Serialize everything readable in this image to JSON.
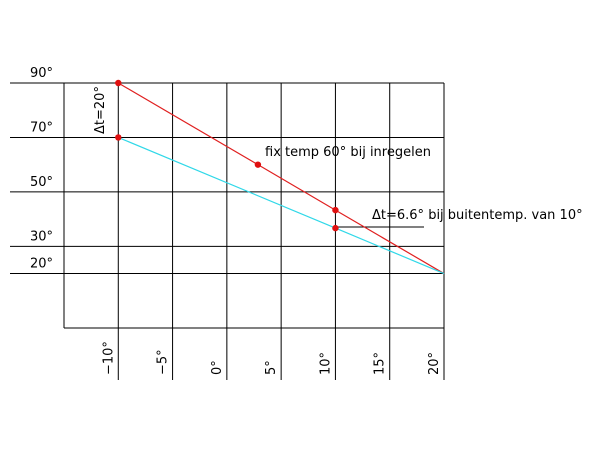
{
  "chart_data": {
    "type": "line",
    "xlim": [
      -15,
      20
    ],
    "ylim": [
      0,
      90
    ],
    "xticks": [
      {
        "value": -10,
        "label": "−10°"
      },
      {
        "value": -5,
        "label": "−5°"
      },
      {
        "value": 0,
        "label": "0°"
      },
      {
        "value": 5,
        "label": "5°"
      },
      {
        "value": 10,
        "label": "10°"
      },
      {
        "value": 15,
        "label": "15°"
      },
      {
        "value": 20,
        "label": "20°"
      }
    ],
    "yticks": [
      {
        "value": 90,
        "label": "90°"
      },
      {
        "value": 70,
        "label": "70°"
      },
      {
        "value": 50,
        "label": "50°"
      },
      {
        "value": 30,
        "label": "30°"
      },
      {
        "value": 20,
        "label": "20°"
      }
    ],
    "grid": true,
    "series": [
      {
        "color": "#e02020",
        "x": [
          -10,
          2.86,
          10,
          20
        ],
        "values": [
          90,
          60,
          43.3,
          20
        ],
        "markers": [
          true,
          true,
          true,
          false
        ]
      },
      {
        "color": "#30d8e8",
        "x": [
          -10,
          10,
          20
        ],
        "values": [
          70,
          36.7,
          20
        ],
        "markers": [
          true,
          true,
          false
        ]
      }
    ],
    "annotations": [
      "Δt=20°",
      "fix temp 60° bij inregelen",
      "Δt=6.6° bij buitentemp. van 10°"
    ]
  }
}
